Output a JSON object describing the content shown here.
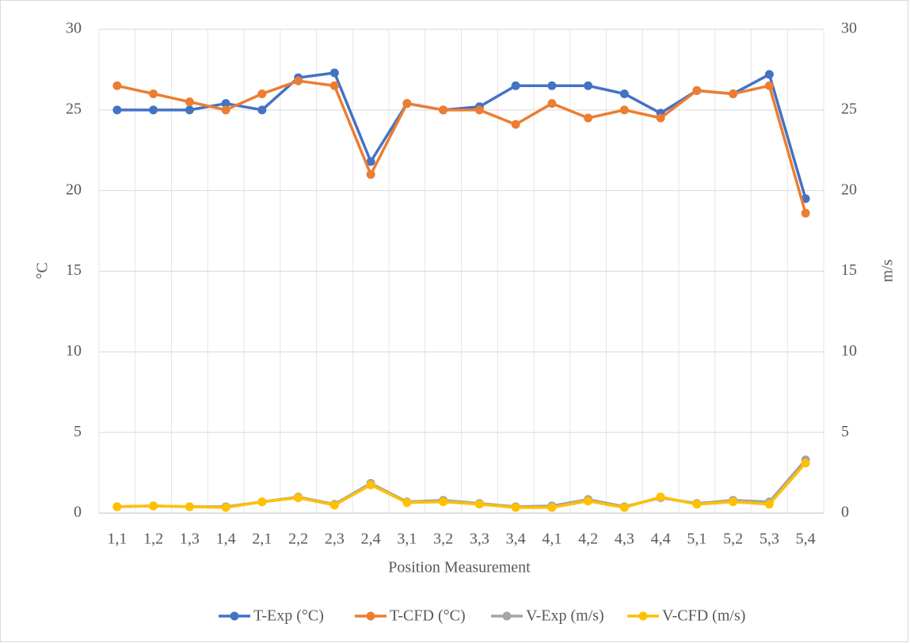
{
  "chart_data": {
    "type": "line",
    "x_label": "Position Measurement",
    "y_label": "°C",
    "y2_label": "m/s",
    "categories": [
      "1,1",
      "1,2",
      "1,3",
      "1,4",
      "2,1",
      "2,2",
      "2,3",
      "2,4",
      "3,1",
      "3,2",
      "3,3",
      "3,4",
      "4,1",
      "4,2",
      "4,3",
      "4,4",
      "5,1",
      "5,2",
      "5,3",
      "5,4"
    ],
    "series": [
      {
        "name": "T-Exp (°C)",
        "color": "#4472c4",
        "values": [
          25,
          25,
          25,
          25.4,
          25,
          27,
          27.3,
          21.8,
          25.4,
          25,
          25.2,
          26.5,
          26.5,
          26.5,
          26,
          24.8,
          26.2,
          26,
          27.2,
          19.5
        ]
      },
      {
        "name": "T-CFD (°C)",
        "color": "#ed7d31",
        "values": [
          26.5,
          26,
          25.5,
          25,
          26,
          26.8,
          26.5,
          21,
          25.4,
          25,
          25,
          24.1,
          25.4,
          24.5,
          25,
          24.5,
          26.2,
          26,
          26.5,
          18.6
        ]
      },
      {
        "name": "V-Exp (m/s)",
        "color": "#a5a5a5",
        "axis": "y2",
        "values": [
          0.4,
          0.45,
          0.4,
          0.4,
          0.7,
          1.0,
          0.55,
          1.85,
          0.7,
          0.8,
          0.6,
          0.4,
          0.45,
          0.85,
          0.4,
          0.95,
          0.6,
          0.8,
          0.7,
          3.3
        ]
      },
      {
        "name": "V-CFD (m/s)",
        "color": "#ffc000",
        "axis": "y2",
        "values": [
          0.4,
          0.45,
          0.4,
          0.35,
          0.7,
          0.95,
          0.5,
          1.75,
          0.65,
          0.7,
          0.55,
          0.35,
          0.35,
          0.75,
          0.35,
          1.0,
          0.55,
          0.7,
          0.55,
          3.1
        ]
      }
    ],
    "ylim": [
      0,
      30
    ],
    "yticks": [
      0,
      5,
      10,
      15,
      20,
      25,
      30
    ],
    "y2lim": [
      0,
      30
    ],
    "y2ticks": [
      0,
      5,
      10,
      15,
      20,
      25,
      30
    ],
    "grid": true,
    "legend": "bottom"
  }
}
